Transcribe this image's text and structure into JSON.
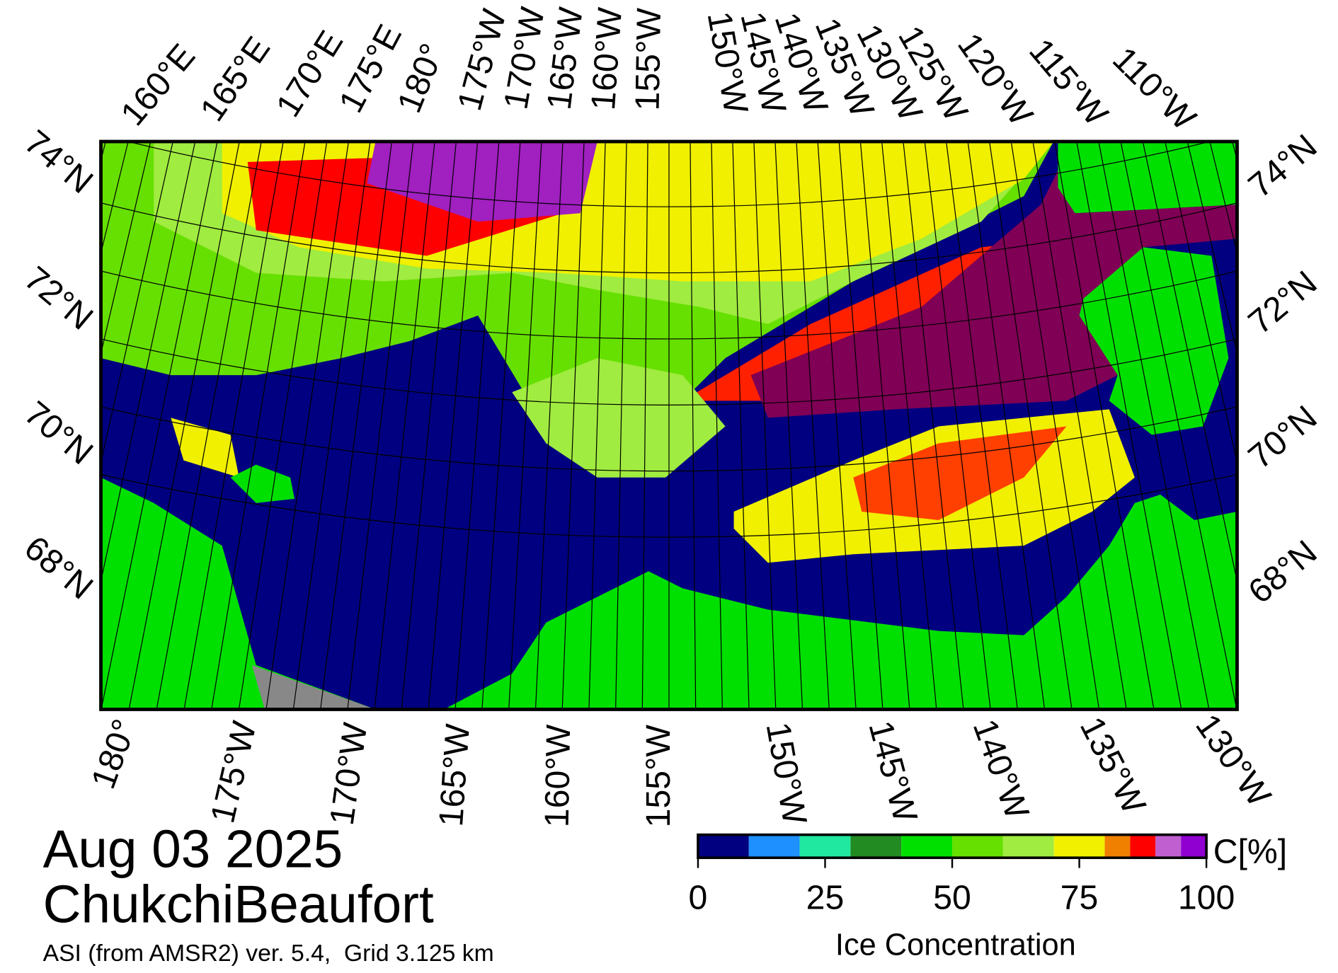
{
  "map": {
    "date": "Aug 03 2025",
    "region": "ChukchiBeaufort",
    "source": "ASI (from AMSR2) ver. 5.4,  Grid 3.125 km",
    "lon_labels_top": [
      "160°E",
      "165°E",
      "170°E",
      "175°E",
      "180°",
      "175°W",
      "170°W",
      "165°W",
      "160°W",
      "155°W",
      "150°W",
      "145°W",
      "140°W",
      "135°W",
      "130°W",
      "125°W",
      "120°W",
      "115°W",
      "110°W"
    ],
    "lon_labels_bottom": [
      "180°",
      "175°W",
      "170°W",
      "165°W",
      "160°W",
      "155°W",
      "150°W",
      "145°W",
      "140°W",
      "135°W",
      "130°W"
    ],
    "lat_labels_left": [
      "74°N",
      "72°N",
      "70°N",
      "68°N"
    ],
    "lat_labels_right": [
      "74°N",
      "72°N",
      "70°N",
      "68°N"
    ]
  },
  "colorbar": {
    "title": "Ice Concentration",
    "unit": "C[%]",
    "bounds": [
      0,
      10,
      20,
      30,
      40,
      50,
      60,
      70,
      80,
      85,
      90,
      95,
      100
    ],
    "colors": [
      "#000080",
      "#1e90ff",
      "#20e8a0",
      "#228b22",
      "#00e000",
      "#66e000",
      "#a0ec40",
      "#f0f000",
      "#f08000",
      "#ff0000",
      "#c060d0",
      "#9000d0"
    ],
    "ticks": [
      0,
      25,
      50,
      75,
      100
    ]
  }
}
